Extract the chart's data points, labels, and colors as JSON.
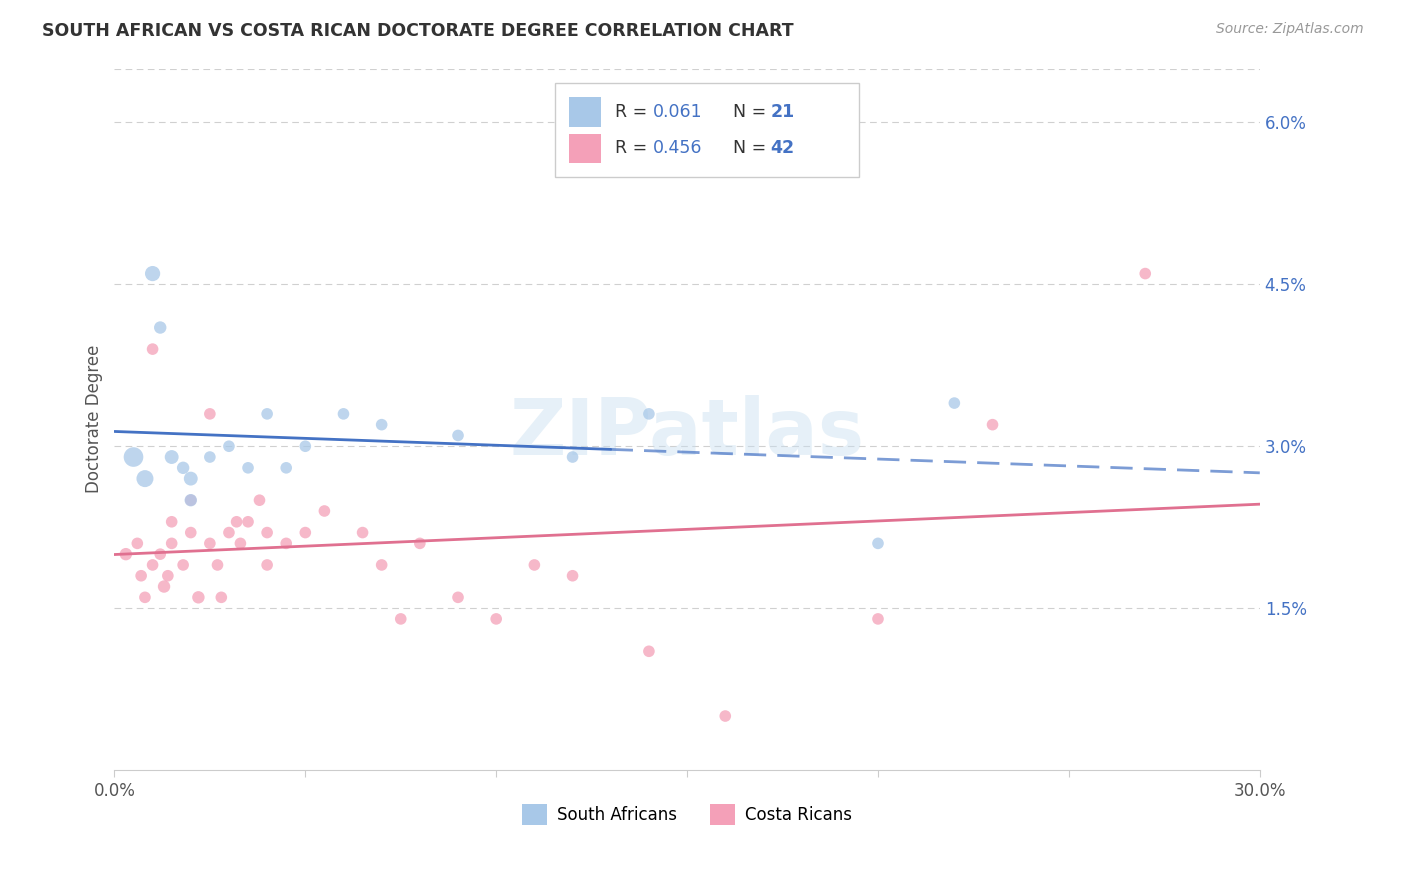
{
  "title": "SOUTH AFRICAN VS COSTA RICAN DOCTORATE DEGREE CORRELATION CHART",
  "source": "Source: ZipAtlas.com",
  "ylabel": "Doctorate Degree",
  "xlim": [
    0.0,
    0.3
  ],
  "ylim": [
    0.0,
    0.065
  ],
  "xtick_vals": [
    0.0,
    0.05,
    0.1,
    0.15,
    0.2,
    0.25,
    0.3
  ],
  "xticklabels": [
    "0.0%",
    "",
    "",
    "",
    "",
    "",
    "30.0%"
  ],
  "yticks_right": [
    0.015,
    0.03,
    0.045,
    0.06
  ],
  "yticks_right_labels": [
    "1.5%",
    "3.0%",
    "4.5%",
    "6.0%"
  ],
  "watermark": "ZIPatlas",
  "legend_r1": "0.061",
  "legend_n1": "21",
  "legend_r2": "0.456",
  "legend_n2": "42",
  "color_blue": "#a8c8e8",
  "color_pink": "#f4a0b8",
  "color_blue_line": "#4472c4",
  "color_pink_line": "#e07090",
  "color_title": "#333333",
  "color_source": "#999999",
  "color_rn_val": "#4472c4",
  "color_r_label": "#333333",
  "sa_x": [
    0.005,
    0.008,
    0.01,
    0.012,
    0.015,
    0.018,
    0.02,
    0.02,
    0.025,
    0.03,
    0.035,
    0.04,
    0.045,
    0.05,
    0.06,
    0.07,
    0.09,
    0.12,
    0.14,
    0.2,
    0.22
  ],
  "sa_y": [
    0.029,
    0.027,
    0.046,
    0.041,
    0.029,
    0.028,
    0.027,
    0.025,
    0.029,
    0.03,
    0.028,
    0.033,
    0.028,
    0.03,
    0.033,
    0.032,
    0.031,
    0.029,
    0.033,
    0.021,
    0.034
  ],
  "sa_sizes": [
    200,
    150,
    120,
    80,
    100,
    80,
    100,
    80,
    70,
    70,
    70,
    70,
    70,
    70,
    70,
    70,
    70,
    70,
    70,
    70,
    70
  ],
  "cr_x": [
    0.003,
    0.006,
    0.007,
    0.008,
    0.01,
    0.01,
    0.012,
    0.013,
    0.014,
    0.015,
    0.015,
    0.018,
    0.02,
    0.02,
    0.022,
    0.025,
    0.025,
    0.027,
    0.028,
    0.03,
    0.032,
    0.033,
    0.035,
    0.038,
    0.04,
    0.04,
    0.045,
    0.05,
    0.055,
    0.065,
    0.07,
    0.075,
    0.08,
    0.09,
    0.1,
    0.11,
    0.12,
    0.14,
    0.16,
    0.2,
    0.23,
    0.27
  ],
  "cr_y": [
    0.02,
    0.021,
    0.018,
    0.016,
    0.019,
    0.039,
    0.02,
    0.017,
    0.018,
    0.021,
    0.023,
    0.019,
    0.022,
    0.025,
    0.016,
    0.021,
    0.033,
    0.019,
    0.016,
    0.022,
    0.023,
    0.021,
    0.023,
    0.025,
    0.019,
    0.022,
    0.021,
    0.022,
    0.024,
    0.022,
    0.019,
    0.014,
    0.021,
    0.016,
    0.014,
    0.019,
    0.018,
    0.011,
    0.005,
    0.014,
    0.032,
    0.046
  ],
  "cr_sizes": [
    80,
    70,
    70,
    70,
    70,
    70,
    70,
    80,
    70,
    70,
    70,
    70,
    70,
    70,
    80,
    70,
    70,
    70,
    70,
    70,
    70,
    70,
    70,
    70,
    70,
    70,
    70,
    70,
    70,
    70,
    70,
    70,
    70,
    70,
    70,
    70,
    70,
    70,
    70,
    70,
    70,
    70
  ]
}
